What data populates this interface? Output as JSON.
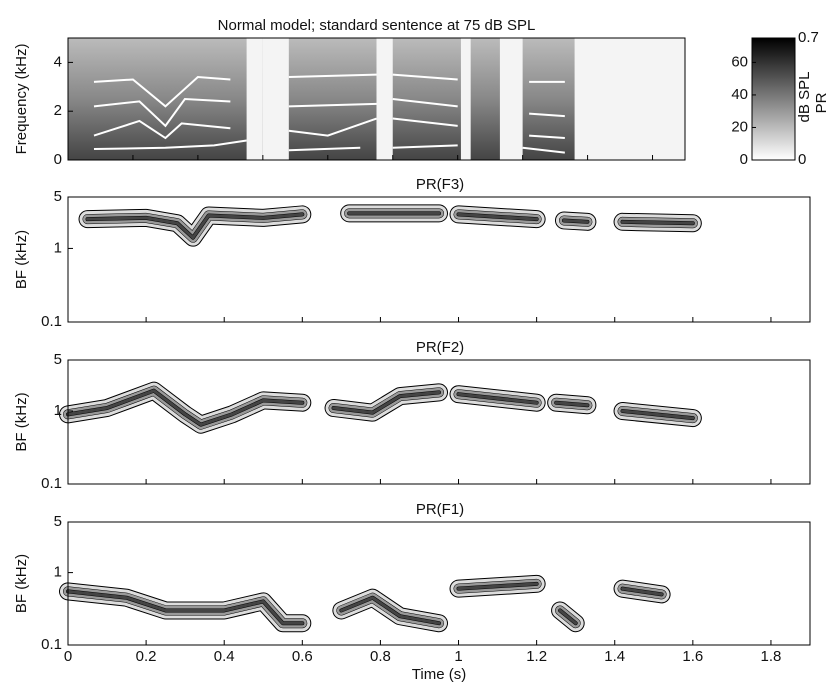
{
  "chart_data": [
    {
      "type": "spectrogram",
      "title": "Normal model; standard sentence at 75 dB SPL",
      "ylabel": "Frequency (kHz)",
      "xlim": [
        0,
        1.9
      ],
      "xticks": [
        0,
        0.2,
        0.4,
        0.6,
        0.8,
        1,
        1.2,
        1.4,
        1.6,
        1.8
      ],
      "ylim": [
        0,
        5
      ],
      "yticks": [
        0,
        2,
        4
      ],
      "colorbar": {
        "label": "dB SPL",
        "lim": [
          0,
          75
        ],
        "ticks": [
          0,
          20,
          40,
          60
        ],
        "label2": "PR",
        "lim2": [
          0,
          0.7
        ],
        "ticks2": [
          0,
          0.7
        ]
      }
    },
    {
      "type": "contour",
      "title": "PR(F3)",
      "ylabel": "BF (kHz)",
      "log_y": true,
      "xlim": [
        0,
        1.9
      ],
      "xticks": [
        0,
        0.2,
        0.4,
        0.6,
        0.8,
        1,
        1.2,
        1.4,
        1.6,
        1.8
      ],
      "ylim": [
        0.1,
        5
      ],
      "yticks": [
        0.1,
        1,
        5
      ]
    },
    {
      "type": "contour",
      "title": "PR(F2)",
      "ylabel": "BF (kHz)",
      "log_y": true,
      "xlim": [
        0,
        1.9
      ],
      "xticks": [
        0,
        0.2,
        0.4,
        0.6,
        0.8,
        1,
        1.2,
        1.4,
        1.6,
        1.8
      ],
      "ylim": [
        0.1,
        5
      ],
      "yticks": [
        0.1,
        1,
        5
      ]
    },
    {
      "type": "contour",
      "title": "PR(F1)",
      "ylabel": "BF (kHz)",
      "xlabel": "Time (s)",
      "log_y": true,
      "xlim": [
        0,
        1.9
      ],
      "xticks": [
        0,
        0.2,
        0.4,
        0.6,
        0.8,
        1,
        1.2,
        1.4,
        1.6,
        1.8
      ],
      "ylim": [
        0.1,
        5
      ],
      "yticks": [
        0.1,
        1,
        5
      ]
    }
  ]
}
